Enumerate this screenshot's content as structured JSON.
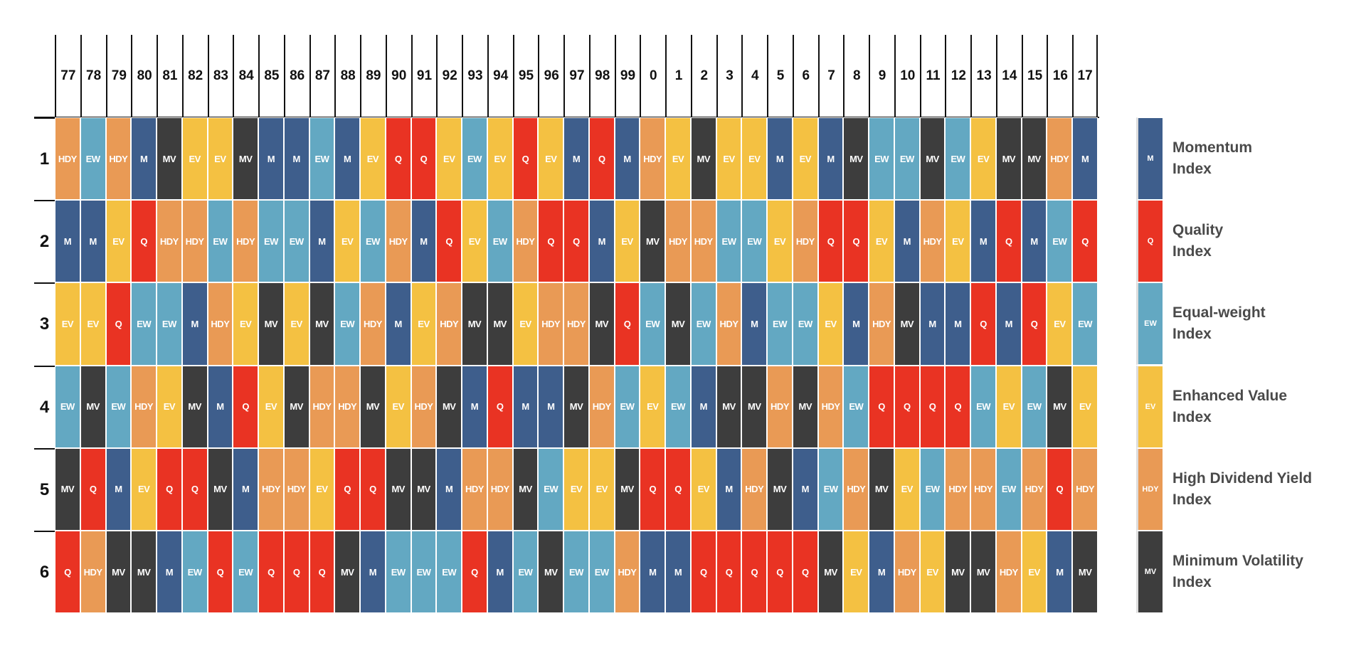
{
  "chart_data": {
    "type": "heatmap",
    "title": "",
    "columns": [
      "77",
      "78",
      "79",
      "80",
      "81",
      "82",
      "83",
      "84",
      "85",
      "86",
      "87",
      "88",
      "89",
      "90",
      "91",
      "92",
      "93",
      "94",
      "95",
      "96",
      "97",
      "98",
      "99",
      "0",
      "1",
      "2",
      "3",
      "4",
      "5",
      "6",
      "7",
      "8",
      "9",
      "10",
      "11",
      "12",
      "13",
      "14",
      "15",
      "16",
      "17"
    ],
    "rows": [
      "1",
      "2",
      "3",
      "4",
      "5",
      "6"
    ],
    "values": [
      [
        "HDY",
        "EW",
        "HDY",
        "M",
        "MV",
        "EV",
        "EV",
        "MV",
        "M",
        "M",
        "EW",
        "M",
        "EV",
        "Q",
        "Q",
        "EV",
        "EW",
        "EV",
        "Q",
        "EV",
        "M",
        "Q",
        "M",
        "HDY",
        "EV",
        "MV",
        "EV",
        "EV",
        "M",
        "EV",
        "M",
        "MV",
        "EW",
        "EW",
        "MV",
        "EW",
        "EV",
        "MV",
        "MV",
        "HDY",
        "M"
      ],
      [
        "M",
        "M",
        "EV",
        "Q",
        "HDY",
        "HDY",
        "EW",
        "HDY",
        "EW",
        "EW",
        "M",
        "EV",
        "EW",
        "HDY",
        "M",
        "Q",
        "EV",
        "EW",
        "HDY",
        "Q",
        "Q",
        "M",
        "EV",
        "MV",
        "HDY",
        "HDY",
        "EW",
        "EW",
        "EV",
        "HDY",
        "Q",
        "Q",
        "EV",
        "M",
        "HDY",
        "EV",
        "M",
        "Q",
        "M",
        "EW",
        "Q"
      ],
      [
        "EV",
        "EV",
        "Q",
        "EW",
        "EW",
        "M",
        "HDY",
        "EV",
        "MV",
        "EV",
        "MV",
        "EW",
        "HDY",
        "M",
        "EV",
        "HDY",
        "MV",
        "MV",
        "EV",
        "HDY",
        "HDY",
        "MV",
        "Q",
        "EW",
        "MV",
        "EW",
        "HDY",
        "M",
        "EW",
        "EW",
        "EV",
        "M",
        "HDY",
        "MV",
        "M",
        "M",
        "Q",
        "M",
        "Q",
        "EV",
        "EW"
      ],
      [
        "EW",
        "MV",
        "EW",
        "HDY",
        "EV",
        "MV",
        "M",
        "Q",
        "EV",
        "MV",
        "HDY",
        "HDY",
        "MV",
        "EV",
        "HDY",
        "MV",
        "M",
        "Q",
        "M",
        "M",
        "MV",
        "HDY",
        "EW",
        "EV",
        "EW",
        "M",
        "MV",
        "MV",
        "HDY",
        "MV",
        "HDY",
        "EW",
        "Q",
        "Q",
        "Q",
        "Q",
        "EW",
        "EV",
        "EW",
        "MV",
        "EV"
      ],
      [
        "MV",
        "Q",
        "M",
        "EV",
        "Q",
        "Q",
        "MV",
        "M",
        "HDY",
        "HDY",
        "EV",
        "Q",
        "Q",
        "MV",
        "MV",
        "M",
        "HDY",
        "HDY",
        "MV",
        "EW",
        "EV",
        "EV",
        "MV",
        "Q",
        "Q",
        "EV",
        "M",
        "HDY",
        "MV",
        "M",
        "EW",
        "HDY",
        "MV",
        "EV",
        "EW",
        "HDY",
        "HDY",
        "EW",
        "HDY",
        "Q",
        "HDY"
      ],
      [
        "Q",
        "HDY",
        "MV",
        "MV",
        "M",
        "EW",
        "Q",
        "EW",
        "Q",
        "Q",
        "Q",
        "MV",
        "M",
        "EW",
        "EW",
        "EW",
        "Q",
        "M",
        "EW",
        "MV",
        "EW",
        "EW",
        "HDY",
        "M",
        "M",
        "Q",
        "Q",
        "Q",
        "Q",
        "Q",
        "MV",
        "EV",
        "M",
        "HDY",
        "EV",
        "MV",
        "MV",
        "HDY",
        "EV",
        "M",
        "MV"
      ]
    ],
    "legend": [
      {
        "code": "M",
        "line1": "Momentum",
        "line2": "Index",
        "color": "#3e5e8c"
      },
      {
        "code": "Q",
        "line1": "Quality",
        "line2": "Index",
        "color": "#e93323"
      },
      {
        "code": "EW",
        "line1": "Equal-weight",
        "line2": "Index",
        "color": "#63a8c2"
      },
      {
        "code": "EV",
        "line1": "Enhanced Value",
        "line2": "Index",
        "color": "#f4c142"
      },
      {
        "code": "HDY",
        "line1": "High Dividend Yield",
        "line2": "Index",
        "color": "#e99a55"
      },
      {
        "code": "MV",
        "line1": "Minimum Volatility",
        "line2": "Index",
        "color": "#3d3d3d"
      }
    ],
    "legend_position": "right"
  }
}
